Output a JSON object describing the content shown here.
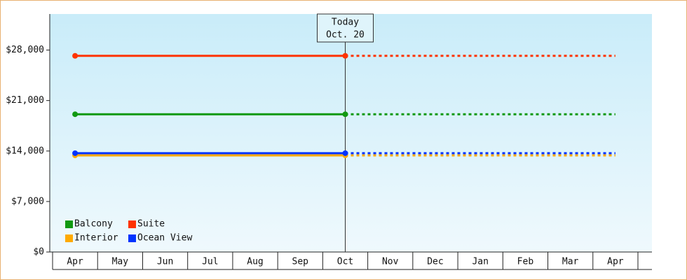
{
  "chart_data": {
    "type": "line",
    "categories": [
      "Apr",
      "May",
      "Jun",
      "Jul",
      "Aug",
      "Sep",
      "Oct",
      "Nov",
      "Dec",
      "Jan",
      "Feb",
      "Mar",
      "Apr"
    ],
    "series": [
      {
        "name": "Balcony",
        "color": "#119911",
        "values": [
          19100,
          19100,
          19100,
          19100,
          19100,
          19100,
          19100,
          19100,
          19100,
          19100,
          19100,
          19100,
          19100
        ]
      },
      {
        "name": "Suite",
        "color": "#ff3300",
        "values": [
          27200,
          27200,
          27200,
          27200,
          27200,
          27200,
          27200,
          27200,
          27200,
          27200,
          27200,
          27200,
          27200
        ]
      },
      {
        "name": "Interior",
        "color": "#ffaa00",
        "values": [
          13400,
          13400,
          13400,
          13400,
          13400,
          13400,
          13400,
          13400,
          13400,
          13400,
          13400,
          13400,
          13400
        ]
      },
      {
        "name": "Ocean View",
        "color": "#0033ff",
        "values": [
          13700,
          13700,
          13700,
          13700,
          13700,
          13700,
          13700,
          13700,
          13700,
          13700,
          13700,
          13700,
          13700
        ]
      }
    ],
    "ylim": [
      0,
      33000
    ],
    "yticks": [
      {
        "value": 0,
        "label": "$0"
      },
      {
        "value": 7000,
        "label": "$7,000"
      },
      {
        "value": 14000,
        "label": "$14,000"
      },
      {
        "value": 21000,
        "label": "$21,000"
      },
      {
        "value": 28000,
        "label": "$28,000"
      }
    ],
    "today": {
      "index": 6,
      "label": "Today",
      "date": "Oct. 20"
    },
    "legend": "lower-left"
  }
}
